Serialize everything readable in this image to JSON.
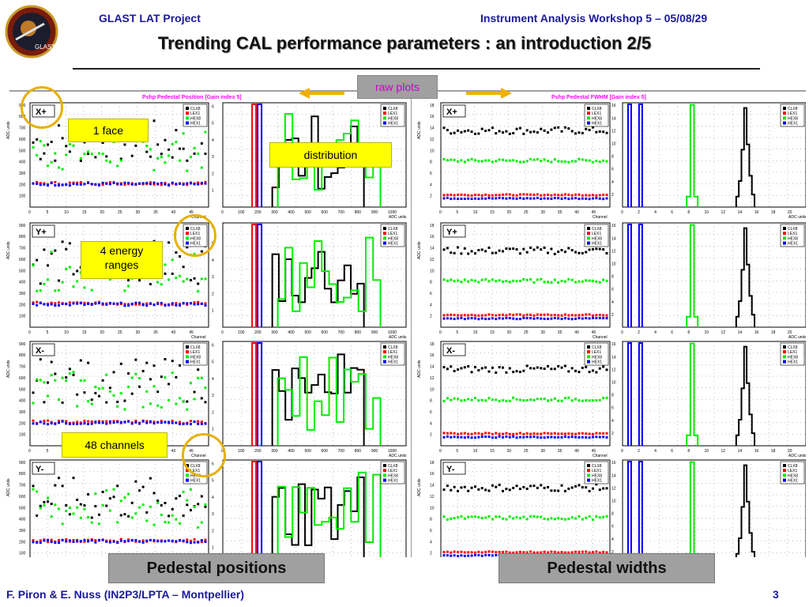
{
  "header": {
    "project": "GLAST LAT Project",
    "workshop": "Instrument Analysis Workshop 5 – 05/08/29",
    "title": "Trending CAL performance parameters : an introduction 2/5",
    "logo_text": "GLAST"
  },
  "annotations": {
    "raw_plots": "raw plots",
    "one_face": "1 face",
    "distribution": "distribution",
    "energy_ranges_line1": "4 energy",
    "energy_ranges_line2": "ranges",
    "channels": "48 channels",
    "pedestal_positions": "Pedestal positions",
    "pedestal_widths": "Pedestal widths"
  },
  "footer": {
    "authors": "F. Piron & E. Nuss  (IN2P3/LPTA – Montpellier)",
    "page": "3"
  },
  "panels": {
    "left_title": "Pshp Pedestal Position [Gain index 5]",
    "right_title": "Pshp Pedestal FWHM [Gain index 5]",
    "faces": [
      "X+",
      "Y+",
      "X-",
      "Y-"
    ],
    "legend": [
      "CLX8",
      "LEX1",
      "HEX8",
      "HEX1"
    ],
    "x_channel": "Channel",
    "x_adc": "ADC units",
    "y_adc": "ADC units",
    "colors": {
      "black": "#000000",
      "red": "#ff0000",
      "green": "#00ee00",
      "blue": "#0000ff"
    }
  },
  "chart_data": [
    {
      "type": "scatter",
      "title": "Pshp Pedestal Position [Gain index 5]",
      "xlabel": "Channel",
      "ylabel": "ADC units",
      "xlim": [
        0,
        48
      ],
      "ylim": [
        0,
        900
      ],
      "x_ticks": [
        "0",
        "5",
        "10",
        "15",
        "20",
        "25",
        "30",
        "35",
        "40",
        "45"
      ],
      "y_ticks": [
        "100",
        "200",
        "300",
        "400",
        "500",
        "600",
        "700",
        "800",
        "900"
      ],
      "series": [
        {
          "name": "CLX8",
          "values_range": [
            350,
            800
          ]
        },
        {
          "name": "LEX1",
          "values_range": [
            180,
            240
          ]
        },
        {
          "name": "HEX8",
          "values_range": [
            300,
            750
          ]
        },
        {
          "name": "HEX1",
          "values_range": [
            180,
            240
          ]
        }
      ]
    },
    {
      "type": "bar",
      "title": "Pshp Pedestal Position [Gain index 5]",
      "xlabel": "ADC units",
      "xlim": [
        0,
        1000
      ],
      "x_ticks": [
        "0",
        "100",
        "200",
        "300",
        "400",
        "500",
        "600",
        "700",
        "800",
        "900",
        "1000"
      ],
      "series": [
        {
          "name": "LEX1",
          "peak": 200
        },
        {
          "name": "HEX1",
          "peak": 200
        },
        {
          "name": "CLX8",
          "range": [
            300,
            800
          ]
        },
        {
          "name": "HEX8",
          "range": [
            300,
            850
          ]
        }
      ]
    },
    {
      "type": "scatter",
      "title": "Pshp Pedestal FWHM [Gain index 5]",
      "xlabel": "Channel",
      "ylabel": "ADC units",
      "xlim": [
        0,
        48
      ],
      "ylim": [
        0,
        18
      ],
      "x_ticks": [
        "0",
        "5",
        "10",
        "15",
        "20",
        "25",
        "30",
        "35",
        "40",
        "45"
      ],
      "y_ticks": [
        "2",
        "4",
        "6",
        "8",
        "10",
        "12",
        "14",
        "16",
        "18"
      ],
      "series": [
        {
          "name": "CLX8",
          "mean": 13
        },
        {
          "name": "HEX8",
          "mean": 8
        },
        {
          "name": "LEX1",
          "mean": 2
        },
        {
          "name": "HEX1",
          "mean": 1.5
        }
      ]
    },
    {
      "type": "bar",
      "title": "Pshp Pedestal FWHM [Gain index 5]",
      "xlabel": "ADC units",
      "xlim": [
        0,
        20
      ],
      "x_ticks": [
        "0",
        "2",
        "4",
        "6",
        "8",
        "10",
        "12",
        "14",
        "16",
        "18",
        "20"
      ],
      "series": [
        {
          "name": "HEX1",
          "peak": 1.5
        },
        {
          "name": "LEX1",
          "peak": 2
        },
        {
          "name": "HEX8",
          "peak": 7.5
        },
        {
          "name": "CLX8",
          "peak": 13.5
        }
      ]
    }
  ]
}
